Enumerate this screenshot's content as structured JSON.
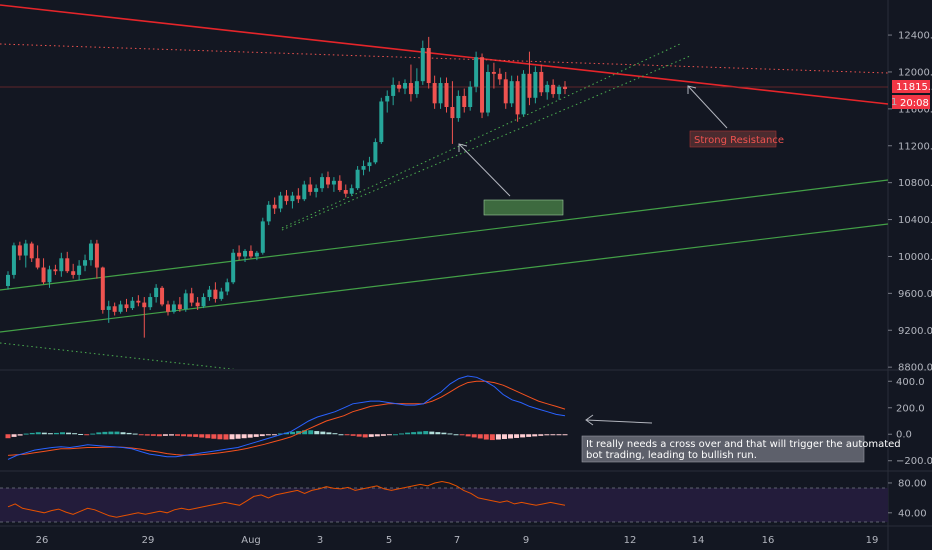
{
  "colors": {
    "background": "#131722",
    "up": "#26a69a",
    "down": "#ef5350",
    "resistance": "#e5252a",
    "support_dotted": "#4caf50",
    "channel": "#43a047",
    "macd_line": "#2962ff",
    "signal_line": "#f4511e",
    "rsi_line": "#e65100",
    "rsi_band": "#2a1f47",
    "price_label": "#f23645"
  },
  "chart_data": [
    {
      "type": "candlestick",
      "pane": "price",
      "y_ticks": [
        "12400.0",
        "12000.0",
        "11600.0",
        "11200.0",
        "10800.0",
        "10400.0",
        "10000.0",
        "9600.0",
        "9200.0",
        "8800.0"
      ],
      "ylim": [
        8780,
        12780
      ],
      "x_tick_labels": [
        "26",
        "29",
        "Aug",
        "3",
        "5",
        "7",
        "9",
        "12",
        "14",
        "16",
        "19"
      ],
      "last_price_label": "11815.5",
      "countdown_label": "20:08",
      "extra_tick_fragment": "1",
      "ohlc": [
        [
          9680,
          9840,
          9640,
          9800
        ],
        [
          9800,
          10150,
          9760,
          10120
        ],
        [
          10120,
          10160,
          9960,
          10010
        ],
        [
          10010,
          10180,
          9880,
          10140
        ],
        [
          10140,
          10160,
          9940,
          9980
        ],
        [
          9980,
          10120,
          9860,
          9880
        ],
        [
          9880,
          9980,
          9700,
          9720
        ],
        [
          9720,
          9900,
          9660,
          9860
        ],
        [
          9860,
          9910,
          9800,
          9840
        ],
        [
          9840,
          10040,
          9780,
          9980
        ],
        [
          9980,
          10050,
          9820,
          9840
        ],
        [
          9840,
          9920,
          9760,
          9800
        ],
        [
          9800,
          9960,
          9740,
          9900
        ],
        [
          9900,
          10020,
          9840,
          9960
        ],
        [
          9960,
          10180,
          9900,
          10140
        ],
        [
          10140,
          10180,
          9760,
          9880
        ],
        [
          9880,
          9890,
          9380,
          9420
        ],
        [
          9420,
          9520,
          9280,
          9460
        ],
        [
          9460,
          9500,
          9360,
          9400
        ],
        [
          9400,
          9520,
          9380,
          9480
        ],
        [
          9480,
          9540,
          9400,
          9440
        ],
        [
          9440,
          9560,
          9420,
          9520
        ],
        [
          9520,
          9580,
          9460,
          9500
        ],
        [
          9500,
          9560,
          9120,
          9450
        ],
        [
          9450,
          9600,
          9420,
          9560
        ],
        [
          9560,
          9700,
          9500,
          9660
        ],
        [
          9660,
          9680,
          9460,
          9480
        ],
        [
          9480,
          9520,
          9360,
          9400
        ],
        [
          9400,
          9520,
          9380,
          9480
        ],
        [
          9480,
          9560,
          9400,
          9430
        ],
        [
          9430,
          9640,
          9400,
          9600
        ],
        [
          9600,
          9660,
          9460,
          9500
        ],
        [
          9500,
          9560,
          9420,
          9460
        ],
        [
          9460,
          9600,
          9440,
          9560
        ],
        [
          9560,
          9680,
          9520,
          9640
        ],
        [
          9640,
          9720,
          9500,
          9540
        ],
        [
          9540,
          9660,
          9520,
          9620
        ],
        [
          9620,
          9760,
          9580,
          9720
        ],
        [
          9720,
          10080,
          9700,
          10040
        ],
        [
          10040,
          10120,
          9960,
          10000
        ],
        [
          10000,
          10080,
          9940,
          10060
        ],
        [
          10060,
          10120,
          9980,
          10000
        ],
        [
          10000,
          10060,
          9960,
          10040
        ],
        [
          10040,
          10420,
          10020,
          10380
        ],
        [
          10380,
          10600,
          10340,
          10560
        ],
        [
          10560,
          10640,
          10460,
          10520
        ],
        [
          10520,
          10700,
          10480,
          10660
        ],
        [
          10660,
          10720,
          10560,
          10600
        ],
        [
          10600,
          10700,
          10520,
          10660
        ],
        [
          10660,
          10740,
          10580,
          10620
        ],
        [
          10620,
          10820,
          10600,
          10780
        ],
        [
          10780,
          10860,
          10660,
          10700
        ],
        [
          10700,
          10780,
          10640,
          10740
        ],
        [
          10740,
          10900,
          10700,
          10860
        ],
        [
          10860,
          10920,
          10740,
          10780
        ],
        [
          10780,
          10860,
          10700,
          10820
        ],
        [
          10820,
          10880,
          10700,
          10720
        ],
        [
          10720,
          10780,
          10640,
          10680
        ],
        [
          10680,
          10780,
          10660,
          10740
        ],
        [
          10740,
          10980,
          10720,
          10940
        ],
        [
          10940,
          11040,
          10880,
          10980
        ],
        [
          10980,
          11080,
          10920,
          11020
        ],
        [
          11020,
          11280,
          11000,
          11240
        ],
        [
          11240,
          11720,
          11220,
          11680
        ],
        [
          11680,
          11800,
          11560,
          11740
        ],
        [
          11740,
          11940,
          11640,
          11860
        ],
        [
          11860,
          11900,
          11780,
          11820
        ],
        [
          11820,
          11920,
          11760,
          11880
        ],
        [
          11880,
          12080,
          11680,
          11760
        ],
        [
          11760,
          12040,
          11720,
          11900
        ],
        [
          11900,
          12340,
          11860,
          12260
        ],
        [
          12260,
          12380,
          11820,
          11880
        ],
        [
          11880,
          11960,
          11600,
          11660
        ],
        [
          11660,
          11940,
          11600,
          11880
        ],
        [
          11880,
          11940,
          11560,
          11620
        ],
        [
          11620,
          11900,
          11220,
          11500
        ],
        [
          11500,
          11800,
          11460,
          11740
        ],
        [
          11740,
          11820,
          11560,
          11620
        ],
        [
          11620,
          11900,
          11580,
          11840
        ],
        [
          11840,
          12220,
          11780,
          12160
        ],
        [
          12160,
          12200,
          11500,
          11560
        ],
        [
          11560,
          12080,
          11520,
          12000
        ],
        [
          12000,
          12100,
          11820,
          11980
        ],
        [
          11980,
          12040,
          11860,
          11920
        ],
        [
          11920,
          12000,
          11600,
          11660
        ],
        [
          11660,
          11960,
          11620,
          11900
        ],
        [
          11900,
          11960,
          11460,
          11540
        ],
        [
          11540,
          12020,
          11520,
          11980
        ],
        [
          11980,
          12220,
          11640,
          11720
        ],
        [
          11720,
          12060,
          11660,
          12000
        ],
        [
          12000,
          12080,
          11740,
          11780
        ],
        [
          11780,
          11900,
          11700,
          11860
        ],
        [
          11860,
          11920,
          11720,
          11760
        ],
        [
          11760,
          11860,
          11700,
          11840
        ],
        [
          11840,
          11900,
          11760,
          11815.5
        ]
      ]
    },
    {
      "type": "macd",
      "pane": "oscillator",
      "y_ticks": [
        "400.0",
        "200.0",
        "0.0",
        "−200.0"
      ],
      "ylim": [
        -270,
        470
      ],
      "macd": [
        -190,
        -160,
        -140,
        -120,
        -110,
        -100,
        -95,
        -100,
        -90,
        -80,
        -85,
        -90,
        -95,
        -100,
        -110,
        -130,
        -150,
        -160,
        -170,
        -170,
        -160,
        -150,
        -140,
        -130,
        -120,
        -110,
        -100,
        -80,
        -60,
        -40,
        -20,
        0,
        20,
        60,
        100,
        130,
        150,
        170,
        200,
        230,
        240,
        250,
        250,
        240,
        230,
        220,
        220,
        230,
        280,
        320,
        380,
        420,
        440,
        430,
        400,
        360,
        300,
        260,
        240,
        210,
        190,
        170,
        150,
        140
      ],
      "signal": [
        -160,
        -155,
        -150,
        -140,
        -130,
        -120,
        -110,
        -110,
        -105,
        -100,
        -100,
        -98,
        -96,
        -98,
        -104,
        -112,
        -124,
        -134,
        -146,
        -154,
        -158,
        -158,
        -154,
        -148,
        -140,
        -130,
        -120,
        -108,
        -92,
        -76,
        -58,
        -40,
        -20,
        10,
        40,
        70,
        100,
        120,
        140,
        170,
        190,
        210,
        220,
        230,
        232,
        230,
        230,
        230,
        250,
        280,
        320,
        360,
        390,
        400,
        400,
        390,
        370,
        340,
        310,
        280,
        250,
        230,
        210,
        190
      ],
      "histogram": [
        -30,
        -20,
        -10,
        5,
        10,
        15,
        12,
        8,
        10,
        15,
        12,
        8,
        2,
        -2,
        5,
        14,
        18,
        20,
        20,
        15,
        10,
        5,
        -5,
        -10,
        -12,
        -15,
        -12,
        -10,
        -12,
        -15,
        -18,
        -20,
        -25,
        -30,
        -34,
        -38,
        -40,
        -38,
        -34,
        -30,
        -26,
        -20,
        -14,
        -8,
        -2,
        6,
        12,
        18,
        24,
        30,
        30,
        24,
        20,
        14,
        8,
        0,
        -6,
        -12,
        -18,
        -24,
        -20,
        -16,
        -12,
        -6,
        0,
        6,
        12,
        16,
        20,
        24,
        20,
        16,
        12,
        6,
        0,
        -8,
        -16,
        -24,
        -32,
        -40,
        -44,
        -40,
        -36,
        -32,
        -28,
        -24,
        -20,
        -16,
        -12,
        -8,
        -6,
        -4,
        -2
      ]
    },
    {
      "type": "line",
      "pane": "rsi",
      "y_ticks": [
        "80.00",
        "40.00"
      ],
      "ylim": [
        25,
        92
      ],
      "band": [
        30,
        70
      ],
      "values": [
        48,
        52,
        46,
        44,
        42,
        40,
        43,
        45,
        41,
        38,
        42,
        46,
        44,
        40,
        36,
        34,
        36,
        38,
        40,
        38,
        40,
        42,
        40,
        44,
        46,
        44,
        46,
        48,
        50,
        52,
        54,
        52,
        50,
        56,
        62,
        64,
        60,
        64,
        66,
        68,
        70,
        66,
        70,
        72,
        75,
        73,
        72,
        74,
        70,
        72,
        74,
        76,
        72,
        70,
        72,
        74,
        76,
        78,
        76,
        80,
        82,
        80,
        76,
        70,
        66,
        60,
        58,
        56,
        54,
        56,
        52,
        54,
        52,
        50,
        52,
        54,
        52,
        50
      ]
    }
  ],
  "annotations": {
    "strong_resistance": "Strong Resistance",
    "support_label_hidden": "",
    "macd_note": "It really needs a cross over and that will trigger the automated bot trading, leading to bullish run."
  }
}
